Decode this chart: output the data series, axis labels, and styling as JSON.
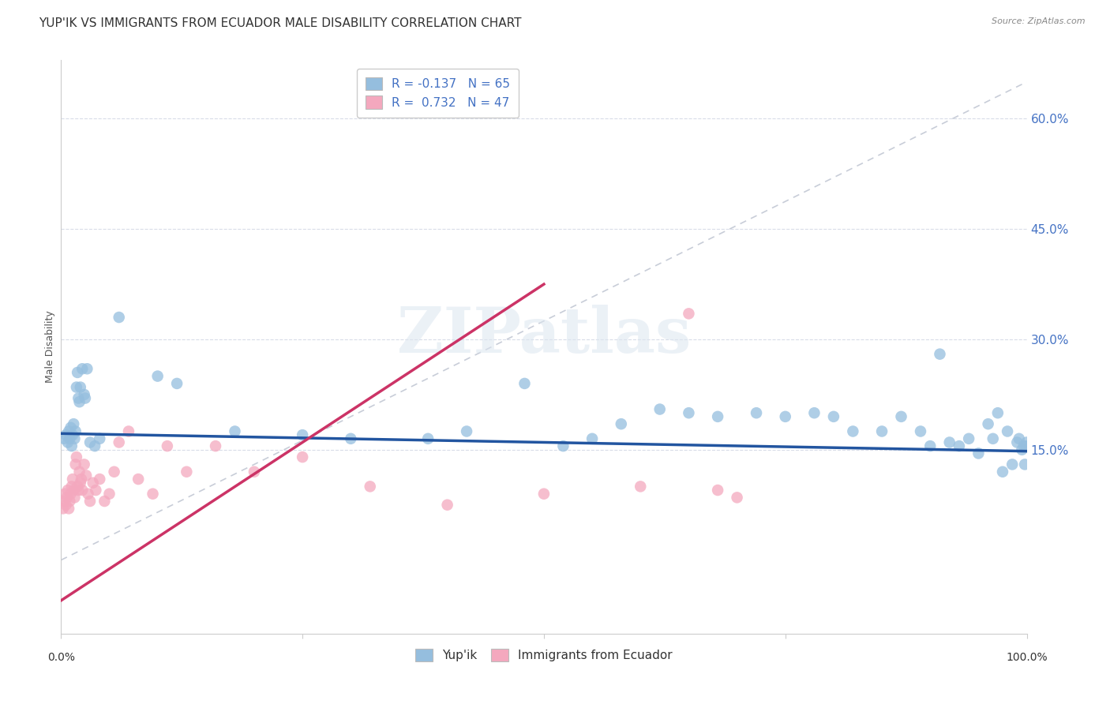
{
  "title": "YUP'IK VS IMMIGRANTS FROM ECUADOR MALE DISABILITY CORRELATION CHART",
  "source": "Source: ZipAtlas.com",
  "ylabel": "Male Disability",
  "watermark": "ZIPatlas",
  "legend_top": [
    {
      "label": "R = -0.137   N = 65",
      "color": "#adc8e8"
    },
    {
      "label": "R =  0.732   N = 47",
      "color": "#f5b8c8"
    }
  ],
  "legend_bottom": [
    "Yup'ik",
    "Immigrants from Ecuador"
  ],
  "ytick_labels": [
    "15.0%",
    "30.0%",
    "45.0%",
    "60.0%"
  ],
  "ytick_values": [
    0.15,
    0.3,
    0.45,
    0.6
  ],
  "xmin": 0.0,
  "xmax": 1.0,
  "ymin": -0.1,
  "ymax": 0.68,
  "blue_color": "#95bede",
  "pink_color": "#f4a8be",
  "blue_line_color": "#2255a0",
  "pink_line_color": "#cc3366",
  "ref_line_color": "#c8cdd8",
  "grid_color": "#d8dce8",
  "blue_scatter_x": [
    0.003,
    0.005,
    0.007,
    0.008,
    0.009,
    0.01,
    0.011,
    0.012,
    0.013,
    0.014,
    0.015,
    0.016,
    0.017,
    0.018,
    0.019,
    0.02,
    0.022,
    0.024,
    0.025,
    0.027,
    0.03,
    0.035,
    0.04,
    0.06,
    0.1,
    0.12,
    0.18,
    0.25,
    0.3,
    0.38,
    0.42,
    0.48,
    0.52,
    0.55,
    0.58,
    0.62,
    0.65,
    0.68,
    0.72,
    0.75,
    0.78,
    0.8,
    0.82,
    0.85,
    0.87,
    0.89,
    0.9,
    0.91,
    0.92,
    0.93,
    0.94,
    0.95,
    0.96,
    0.965,
    0.97,
    0.975,
    0.98,
    0.985,
    0.99,
    0.992,
    0.995,
    0.997,
    0.998,
    0.999,
    1.0
  ],
  "blue_scatter_y": [
    0.165,
    0.17,
    0.16,
    0.175,
    0.165,
    0.18,
    0.155,
    0.17,
    0.185,
    0.165,
    0.175,
    0.235,
    0.255,
    0.22,
    0.215,
    0.235,
    0.26,
    0.225,
    0.22,
    0.26,
    0.16,
    0.155,
    0.165,
    0.33,
    0.25,
    0.24,
    0.175,
    0.17,
    0.165,
    0.165,
    0.175,
    0.24,
    0.155,
    0.165,
    0.185,
    0.205,
    0.2,
    0.195,
    0.2,
    0.195,
    0.2,
    0.195,
    0.175,
    0.175,
    0.195,
    0.175,
    0.155,
    0.28,
    0.16,
    0.155,
    0.165,
    0.145,
    0.185,
    0.165,
    0.2,
    0.12,
    0.175,
    0.13,
    0.16,
    0.165,
    0.15,
    0.155,
    0.13,
    0.155,
    0.16
  ],
  "pink_scatter_x": [
    0.002,
    0.003,
    0.004,
    0.005,
    0.006,
    0.007,
    0.008,
    0.009,
    0.01,
    0.011,
    0.012,
    0.013,
    0.014,
    0.015,
    0.016,
    0.017,
    0.018,
    0.019,
    0.02,
    0.021,
    0.022,
    0.024,
    0.026,
    0.028,
    0.03,
    0.033,
    0.036,
    0.04,
    0.045,
    0.05,
    0.055,
    0.06,
    0.07,
    0.08,
    0.095,
    0.11,
    0.13,
    0.16,
    0.2,
    0.25,
    0.32,
    0.4,
    0.5,
    0.6,
    0.65,
    0.68,
    0.7
  ],
  "pink_scatter_y": [
    0.07,
    0.08,
    0.09,
    0.075,
    0.085,
    0.095,
    0.07,
    0.08,
    0.09,
    0.1,
    0.11,
    0.095,
    0.085,
    0.13,
    0.14,
    0.1,
    0.095,
    0.12,
    0.105,
    0.11,
    0.095,
    0.13,
    0.115,
    0.09,
    0.08,
    0.105,
    0.095,
    0.11,
    0.08,
    0.09,
    0.12,
    0.16,
    0.175,
    0.11,
    0.09,
    0.155,
    0.12,
    0.155,
    0.12,
    0.14,
    0.1,
    0.075,
    0.09,
    0.1,
    0.335,
    0.095,
    0.085
  ],
  "blue_line_x0": 0.0,
  "blue_line_y0": 0.172,
  "blue_line_x1": 1.0,
  "blue_line_y1": 0.148,
  "pink_line_x0": 0.0,
  "pink_line_y0": -0.055,
  "pink_line_x1": 0.5,
  "pink_line_y1": 0.375,
  "title_fontsize": 11,
  "axis_label_fontsize": 9,
  "tick_fontsize": 9
}
